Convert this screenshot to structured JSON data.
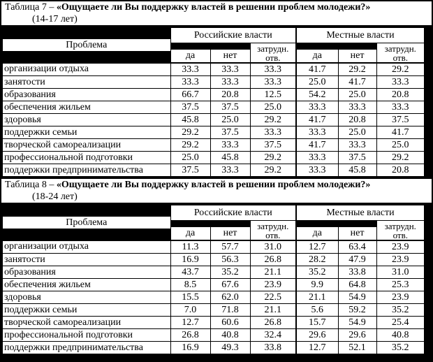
{
  "header": {
    "problem": "Проблема",
    "group_russian": "Российские власти",
    "group_local": "Местные власти",
    "col_yes": "да",
    "col_no": "нет",
    "col_dk_line1": "затрудн.",
    "col_dk_line2": "отв."
  },
  "tables": [
    {
      "title_prefix": "Таблица 7 – ",
      "title_main": "«Ощущаете ли Вы поддержку властей в решении проблем молодежи?»",
      "subtitle": "(14-17 лет)",
      "rows": [
        {
          "label": "организации отдыха",
          "values": [
            "33.3",
            "33.3",
            "33.3",
            "41.7",
            "29.2",
            "29.2"
          ]
        },
        {
          "label": "занятости",
          "values": [
            "33.3",
            "33.3",
            "33.3",
            "25.0",
            "41.7",
            "33.3"
          ]
        },
        {
          "label": "образования",
          "values": [
            "66.7",
            "20.8",
            "12.5",
            "54.2",
            "25.0",
            "20.8"
          ]
        },
        {
          "label": "обеспечения жильем",
          "values": [
            "37.5",
            "37.5",
            "25.0",
            "33.3",
            "33.3",
            "33.3"
          ]
        },
        {
          "label": "здоровья",
          "values": [
            "45.8",
            "25.0",
            "29.2",
            "41.7",
            "20.8",
            "37.5"
          ]
        },
        {
          "label": "поддержки семьи",
          "values": [
            "29.2",
            "37.5",
            "33.3",
            "33.3",
            "25.0",
            "41.7"
          ]
        },
        {
          "label": "творческой самореализации",
          "values": [
            "29.2",
            "33.3",
            "37.5",
            "41.7",
            "33.3",
            "25.0"
          ]
        },
        {
          "label": "профессиональной подготовки",
          "values": [
            "25.0",
            "45.8",
            "29.2",
            "33.3",
            "37.5",
            "29.2"
          ]
        },
        {
          "label": "поддержки предпринимательства",
          "values": [
            "37.5",
            "33.3",
            "29.2",
            "33.3",
            "45.8",
            "20.8"
          ]
        }
      ]
    },
    {
      "title_prefix": "Таблица 8 – ",
      "title_main": "«Ощущаете ли Вы поддержку властей в решении проблем молодежи?»",
      "subtitle": "(18-24 лет)",
      "rows": [
        {
          "label": "организации отдыха",
          "values": [
            "11.3",
            "57.7",
            "31.0",
            "12.7",
            "63.4",
            "23.9"
          ]
        },
        {
          "label": "занятости",
          "values": [
            "16.9",
            "56.3",
            "26.8",
            "28.2",
            "47.9",
            "23.9"
          ]
        },
        {
          "label": "образования",
          "values": [
            "43.7",
            "35.2",
            "21.1",
            "35.2",
            "33.8",
            "31.0"
          ]
        },
        {
          "label": "обеспечения жильем",
          "values": [
            "8.5",
            "67.6",
            "23.9",
            "9.9",
            "64.8",
            "25.3"
          ]
        },
        {
          "label": "здоровья",
          "values": [
            "15.5",
            "62.0",
            "22.5",
            "21.1",
            "54.9",
            "23.9"
          ]
        },
        {
          "label": "поддержки семьи",
          "values": [
            "7.0",
            "71.8",
            "21.1",
            "5.6",
            "59.2",
            "35.2"
          ]
        },
        {
          "label": "творческой самореализации",
          "values": [
            "12.7",
            "60.6",
            "26.8",
            "15.7",
            "54.9",
            "25.4"
          ]
        },
        {
          "label": "профессиональной подготовки",
          "values": [
            "26.8",
            "40.8",
            "32.4",
            "29.6",
            "29.6",
            "40.8"
          ]
        },
        {
          "label": "поддержки предпринимательства",
          "values": [
            "16.9",
            "49.3",
            "33.8",
            "12.7",
            "52.1",
            "35.2"
          ]
        }
      ]
    }
  ]
}
